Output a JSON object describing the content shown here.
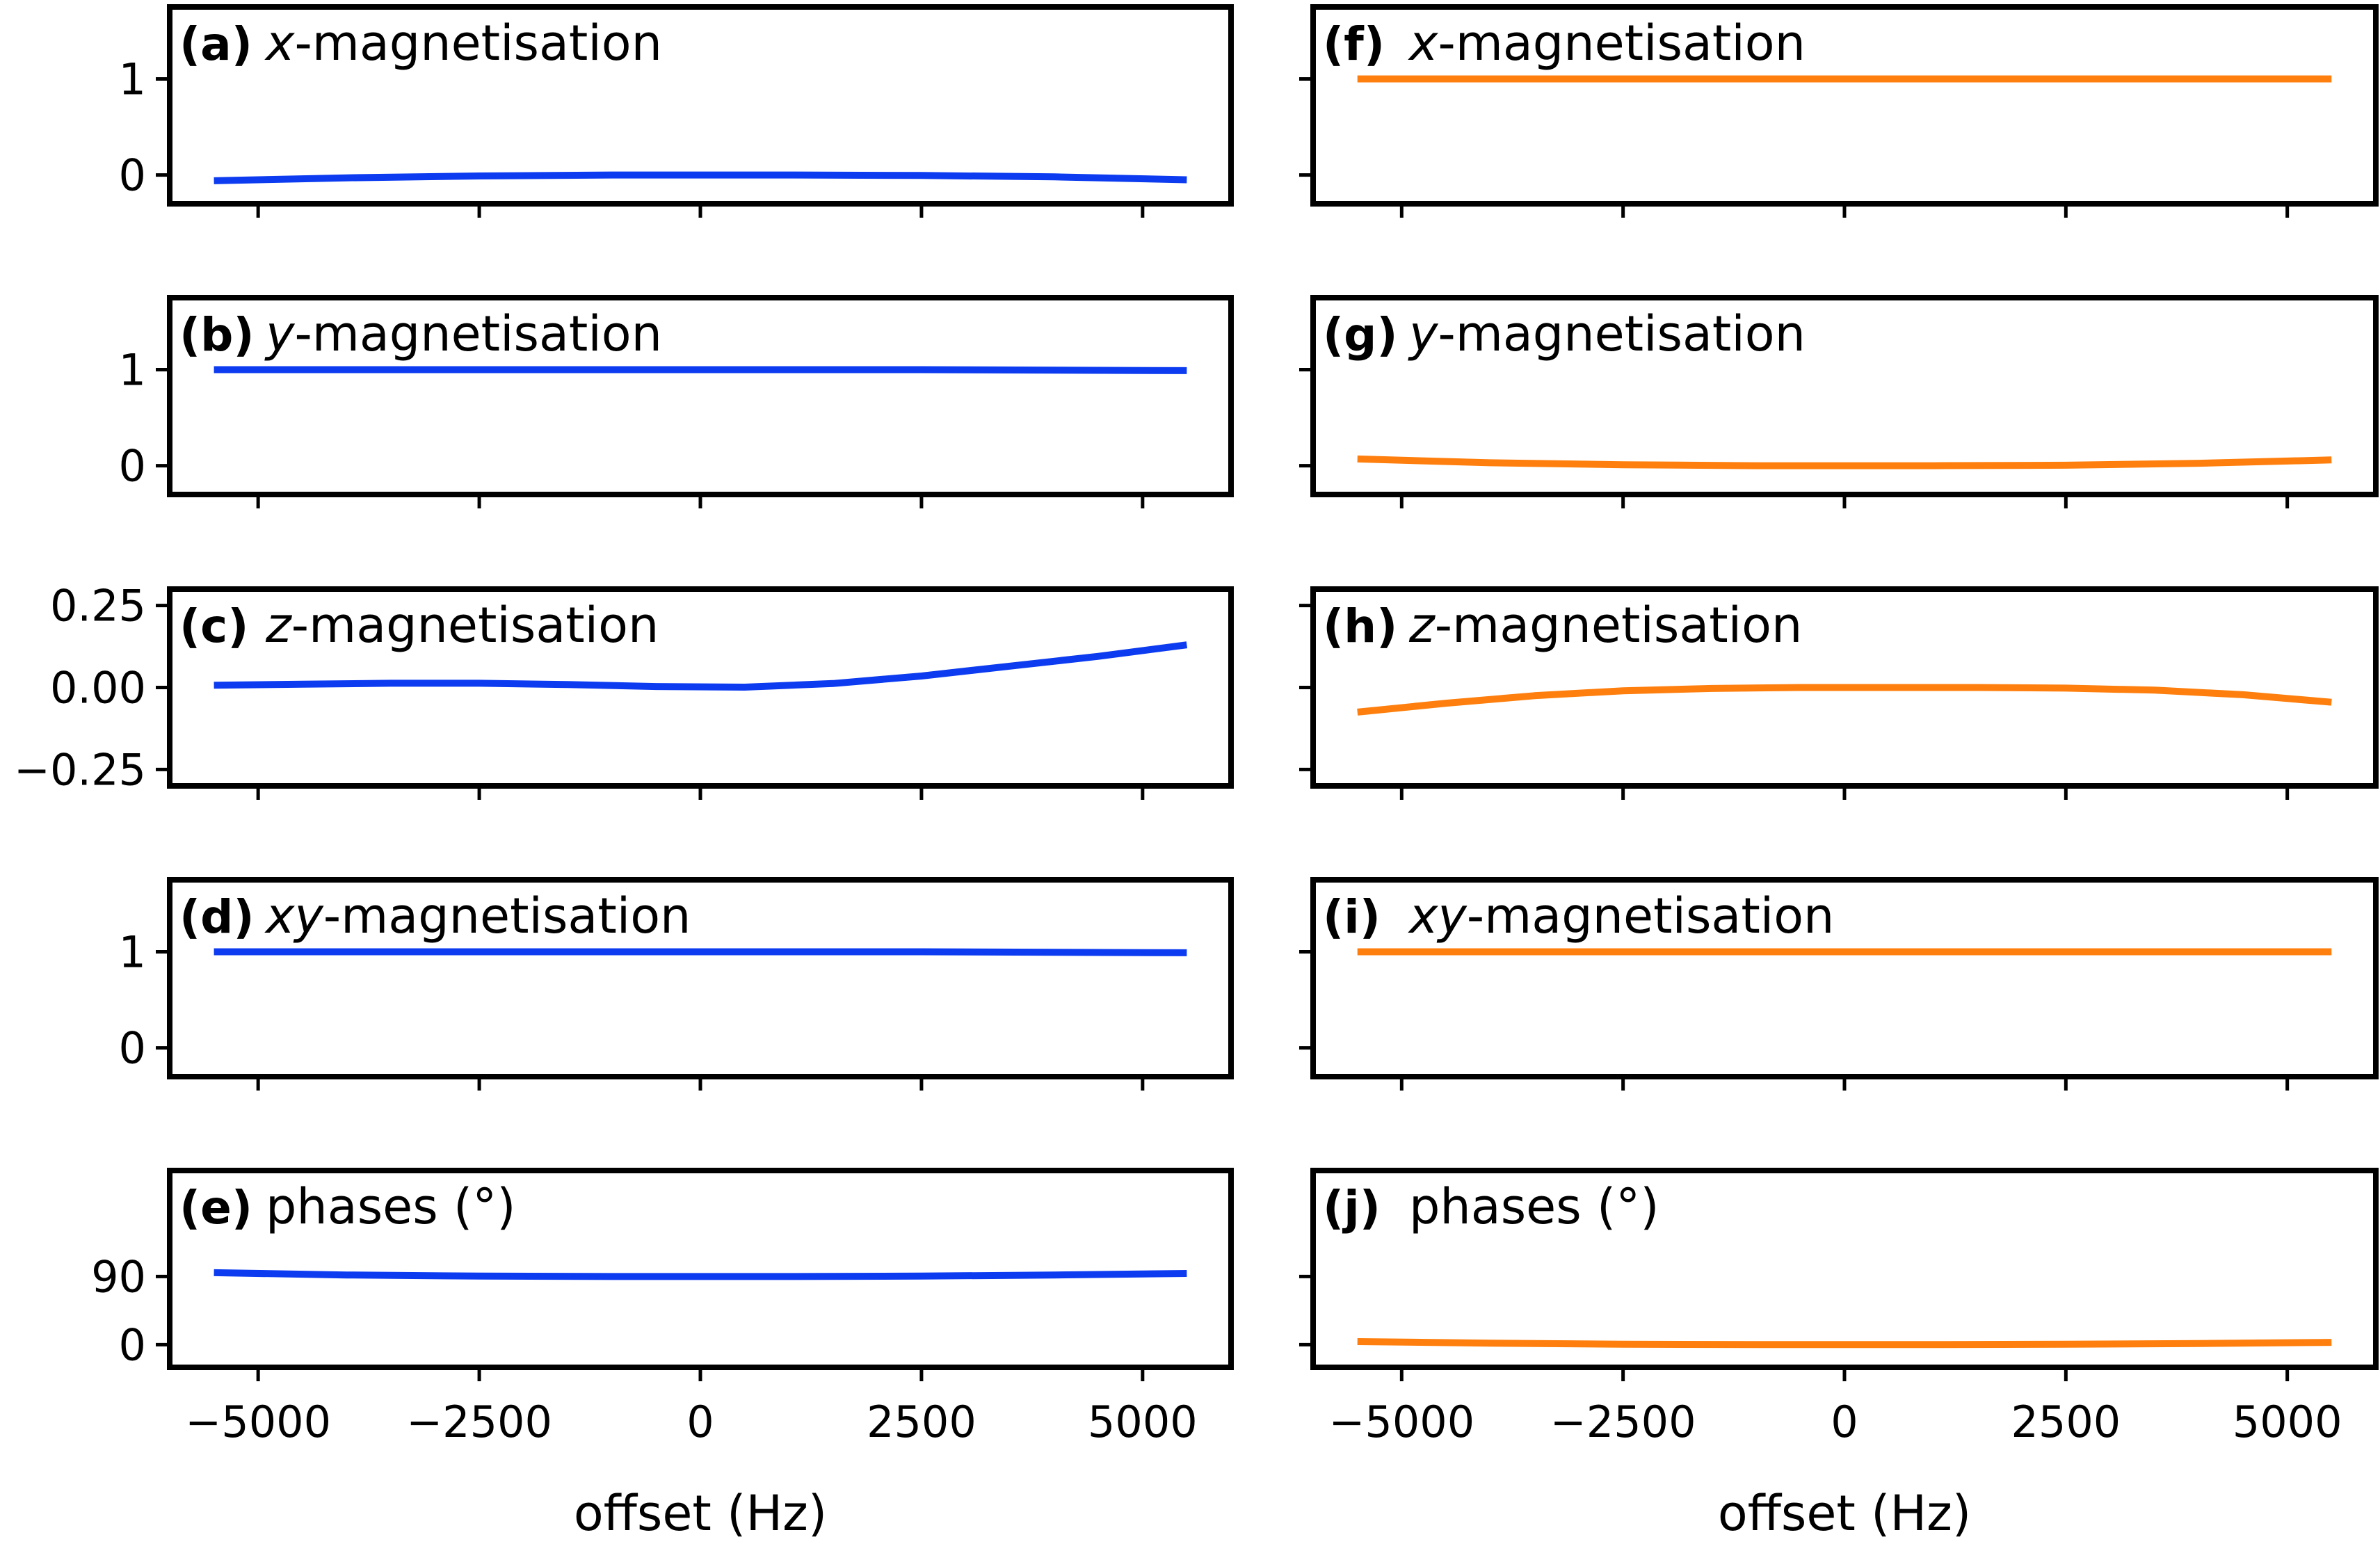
{
  "figure": {
    "xlabel_left": "offset (Hz)",
    "xlabel_right": "offset (Hz)"
  },
  "colors": {
    "left_series": "#0d3cf0",
    "right_series": "#ff7f0e",
    "axes": "#000000"
  },
  "chart_data": [
    {
      "type": "line",
      "tag": "(a)",
      "title_italic": "x",
      "title_rest": "-magnetisation",
      "column": "left",
      "row": 0,
      "xlim": [
        -6000,
        6000
      ],
      "ylim": [
        -0.3,
        1.75
      ],
      "yticks": [
        {
          "v": 0,
          "label": "0"
        },
        {
          "v": 1,
          "label": "1"
        }
      ],
      "xticks": [
        -5000,
        -2500,
        0,
        2500,
        5000
      ],
      "xticklabels": [],
      "series": [
        {
          "x": [
            -5500,
            -4000,
            -2500,
            -1000,
            0,
            1000,
            2500,
            4000,
            5500
          ],
          "y": [
            -0.06,
            -0.03,
            -0.01,
            0.0,
            0.0,
            0.0,
            -0.005,
            -0.02,
            -0.05
          ]
        }
      ]
    },
    {
      "type": "line",
      "tag": "(b)",
      "title_italic": "y",
      "title_rest": "-magnetisation",
      "column": "left",
      "row": 1,
      "xlim": [
        -6000,
        6000
      ],
      "ylim": [
        -0.3,
        1.75
      ],
      "yticks": [
        {
          "v": 0,
          "label": "0"
        },
        {
          "v": 1,
          "label": "1"
        }
      ],
      "xticks": [
        -5000,
        -2500,
        0,
        2500,
        5000
      ],
      "xticklabels": [],
      "series": [
        {
          "x": [
            -5500,
            -2500,
            0,
            2500,
            5500
          ],
          "y": [
            1.0,
            1.0,
            1.0,
            1.0,
            0.99
          ]
        }
      ]
    },
    {
      "type": "line",
      "tag": "(c)",
      "title_italic": "z",
      "title_rest": "-magnetisation",
      "column": "left",
      "row": 2,
      "xlim": [
        -6000,
        6000
      ],
      "ylim": [
        -0.3,
        0.3
      ],
      "yticks": [
        {
          "v": 0.25,
          "label": "0.25"
        },
        {
          "v": 0,
          "label": "0.00"
        },
        {
          "v": -0.25,
          "label": "−0.25"
        }
      ],
      "xticks": [
        -5000,
        -2500,
        0,
        2500,
        5000
      ],
      "xticklabels": [],
      "series": [
        {
          "x": [
            -5500,
            -4500,
            -3500,
            -2500,
            -1500,
            -500,
            500,
            1500,
            2500,
            3500,
            4500,
            5500
          ],
          "y": [
            0.007,
            0.01,
            0.013,
            0.013,
            0.009,
            0.003,
            0.001,
            0.012,
            0.035,
            0.065,
            0.095,
            0.13
          ]
        }
      ]
    },
    {
      "type": "line",
      "tag": "(d)",
      "title_italic": "xy",
      "title_rest": "-magnetisation",
      "column": "left",
      "row": 3,
      "xlim": [
        -6000,
        6000
      ],
      "ylim": [
        -0.3,
        1.75
      ],
      "yticks": [
        {
          "v": 0,
          "label": "0"
        },
        {
          "v": 1,
          "label": "1"
        }
      ],
      "xticks": [
        -5000,
        -2500,
        0,
        2500,
        5000
      ],
      "xticklabels": [],
      "series": [
        {
          "x": [
            -5500,
            -2500,
            0,
            2500,
            5500
          ],
          "y": [
            1.0,
            1.0,
            1.0,
            1.0,
            0.99
          ]
        }
      ]
    },
    {
      "type": "line",
      "tag": "(e)",
      "title_italic": "",
      "title_rest": "phases (°)",
      "column": "left",
      "row": 4,
      "xlim": [
        -6000,
        6000
      ],
      "ylim": [
        -30,
        230
      ],
      "yticks": [
        {
          "v": 0,
          "label": "0"
        },
        {
          "v": 90,
          "label": "90"
        }
      ],
      "xticks": [
        -5000,
        -2500,
        0,
        2500,
        5000
      ],
      "xticklabels": [
        "−5000",
        "−2500",
        "0",
        "2500",
        "5000"
      ],
      "series": [
        {
          "x": [
            -5500,
            -4000,
            -2500,
            -1000,
            0,
            1000,
            2500,
            4000,
            5500
          ],
          "y": [
            95,
            92,
            90.5,
            90,
            90,
            90,
            90.5,
            92,
            94
          ]
        }
      ]
    },
    {
      "type": "line",
      "tag": "(f)",
      "title_italic": "x",
      "title_rest": "-magnetisation",
      "column": "right",
      "row": 0,
      "xlim": [
        -6000,
        6000
      ],
      "ylim": [
        -0.3,
        1.75
      ],
      "yticks": [
        {
          "v": 0,
          "label": ""
        },
        {
          "v": 1,
          "label": ""
        }
      ],
      "xticks": [
        -5000,
        -2500,
        0,
        2500,
        5000
      ],
      "xticklabels": [],
      "series": [
        {
          "x": [
            -5500,
            -2500,
            0,
            2500,
            5500
          ],
          "y": [
            1.0,
            1.0,
            1.0,
            1.0,
            1.0
          ]
        }
      ]
    },
    {
      "type": "line",
      "tag": "(g)",
      "title_italic": "y",
      "title_rest": "-magnetisation",
      "column": "right",
      "row": 1,
      "xlim": [
        -6000,
        6000
      ],
      "ylim": [
        -0.3,
        1.75
      ],
      "yticks": [
        {
          "v": 0,
          "label": ""
        },
        {
          "v": 1,
          "label": ""
        }
      ],
      "xticks": [
        -5000,
        -2500,
        0,
        2500,
        5000
      ],
      "xticklabels": [],
      "series": [
        {
          "x": [
            -5500,
            -4000,
            -2500,
            -1000,
            0,
            1000,
            2500,
            4000,
            5500
          ],
          "y": [
            0.07,
            0.03,
            0.01,
            0.0,
            0.0,
            0.0,
            0.005,
            0.025,
            0.06
          ]
        }
      ]
    },
    {
      "type": "line",
      "tag": "(h)",
      "title_italic": "z",
      "title_rest": "-magnetisation",
      "column": "right",
      "row": 2,
      "xlim": [
        -6000,
        6000
      ],
      "ylim": [
        -0.3,
        0.3
      ],
      "yticks": [
        {
          "v": 0.25,
          "label": ""
        },
        {
          "v": 0,
          "label": ""
        },
        {
          "v": -0.25,
          "label": ""
        }
      ],
      "xticks": [
        -5000,
        -2500,
        0,
        2500,
        5000
      ],
      "xticklabels": [],
      "series": [
        {
          "x": [
            -5500,
            -4500,
            -3500,
            -2500,
            -1500,
            -500,
            500,
            1500,
            2500,
            3500,
            4500,
            5500
          ],
          "y": [
            -0.075,
            -0.048,
            -0.025,
            -0.01,
            -0.003,
            0.0,
            0.0,
            0.0,
            -0.002,
            -0.008,
            -0.022,
            -0.045
          ]
        }
      ]
    },
    {
      "type": "line",
      "tag": "(i)",
      "title_italic": "xy",
      "title_rest": "-magnetisation",
      "column": "right",
      "row": 3,
      "xlim": [
        -6000,
        6000
      ],
      "ylim": [
        -0.3,
        1.75
      ],
      "yticks": [
        {
          "v": 0,
          "label": ""
        },
        {
          "v": 1,
          "label": ""
        }
      ],
      "xticks": [
        -5000,
        -2500,
        0,
        2500,
        5000
      ],
      "xticklabels": [],
      "series": [
        {
          "x": [
            -5500,
            -2500,
            0,
            2500,
            5500
          ],
          "y": [
            1.0,
            1.0,
            1.0,
            1.0,
            1.0
          ]
        }
      ]
    },
    {
      "type": "line",
      "tag": "(j)",
      "title_italic": "",
      "title_rest": "phases (°)",
      "column": "right",
      "row": 4,
      "xlim": [
        -6000,
        6000
      ],
      "ylim": [
        -30,
        230
      ],
      "yticks": [
        {
          "v": 0,
          "label": ""
        },
        {
          "v": 90,
          "label": ""
        }
      ],
      "xticks": [
        -5000,
        -2500,
        0,
        2500,
        5000
      ],
      "xticklabels": [
        "−5000",
        "−2500",
        "0",
        "2500",
        "5000"
      ],
      "series": [
        {
          "x": [
            -5500,
            -4000,
            -2500,
            -1000,
            0,
            1000,
            2500,
            4000,
            5500
          ],
          "y": [
            4,
            2,
            0.5,
            0,
            0,
            0,
            0.5,
            1.5,
            3
          ]
        }
      ]
    }
  ]
}
